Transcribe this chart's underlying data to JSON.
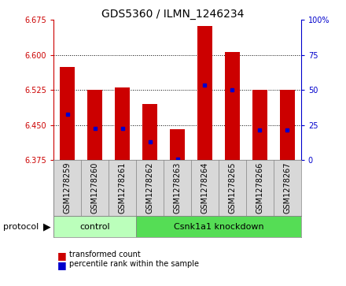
{
  "title": "GDS5360 / ILMN_1246234",
  "samples": [
    "GSM1278259",
    "GSM1278260",
    "GSM1278261",
    "GSM1278262",
    "GSM1278263",
    "GSM1278264",
    "GSM1278265",
    "GSM1278266",
    "GSM1278267"
  ],
  "bar_tops": [
    6.575,
    6.525,
    6.53,
    6.495,
    6.442,
    6.663,
    6.607,
    6.525,
    6.525
  ],
  "bar_bottoms": [
    6.375,
    6.375,
    6.375,
    6.375,
    6.375,
    6.375,
    6.375,
    6.375,
    6.375
  ],
  "blue_dot_y": [
    6.474,
    6.443,
    6.443,
    6.415,
    6.378,
    6.535,
    6.525,
    6.44,
    6.44
  ],
  "ylim": [
    6.375,
    6.675
  ],
  "yticks": [
    6.375,
    6.45,
    6.525,
    6.6,
    6.675
  ],
  "y2ticks": [
    0,
    25,
    50,
    75,
    100
  ],
  "bar_color": "#cc0000",
  "dot_color": "#0000cc",
  "n_control": 3,
  "control_label": "control",
  "knockdown_label": "Csnk1a1 knockdown",
  "protocol_label": "protocol",
  "legend_bar_label": "transformed count",
  "legend_dot_label": "percentile rank within the sample",
  "bg_color": "#d8d8d8",
  "plot_bg": "#ffffff",
  "green_light": "#bbffbb",
  "green_dark": "#55dd55",
  "bar_width": 0.55,
  "title_fontsize": 10,
  "tick_fontsize": 7,
  "label_fontsize": 7,
  "legend_fontsize": 7
}
